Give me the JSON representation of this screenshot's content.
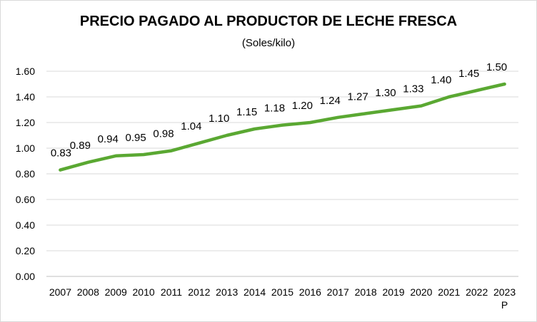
{
  "chart_data": {
    "type": "line",
    "title": "PRECIO PAGADO AL PRODUCTOR DE LECHE FRESCA",
    "subtitle": "(Soles/kilo)",
    "xlabel": "",
    "ylabel": "",
    "categories": [
      "2007",
      "2008",
      "2009",
      "2010",
      "2011",
      "2012",
      "2013",
      "2014",
      "2015",
      "2016",
      "2017",
      "2018",
      "2019",
      "2020",
      "2021",
      "2022",
      "2023"
    ],
    "category_notes": [
      "",
      "",
      "",
      "",
      "",
      "",
      "",
      "",
      "",
      "",
      "",
      "",
      "",
      "",
      "",
      "",
      "P"
    ],
    "series": [
      {
        "values": [
          0.83,
          0.89,
          0.94,
          0.95,
          0.98,
          1.04,
          1.1,
          1.15,
          1.18,
          1.2,
          1.24,
          1.27,
          1.3,
          1.33,
          1.4,
          1.45,
          1.5
        ],
        "labels": [
          "0.83",
          "0.89",
          "0.94",
          "0.95",
          "0.98",
          "1.04",
          "1.10",
          "1.15",
          "1.18",
          "1.20",
          "1.24",
          "1.27",
          "1.30",
          "1.33",
          "1.40",
          "1.45",
          "1.50"
        ],
        "color": "#5aa832"
      }
    ],
    "ylim": [
      0,
      1.6
    ],
    "yticks": [
      "0.00",
      "0.20",
      "0.40",
      "0.60",
      "0.80",
      "1.00",
      "1.20",
      "1.40",
      "1.60"
    ],
    "grid": true,
    "gridColor": "#d9d9d9",
    "legend": "none"
  }
}
